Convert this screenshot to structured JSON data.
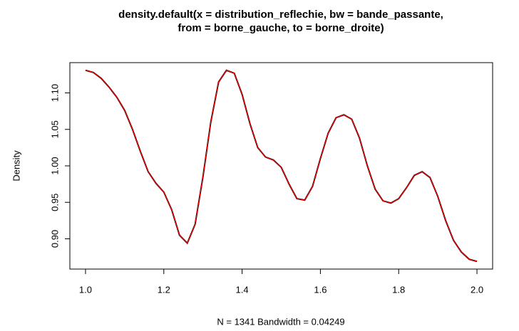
{
  "chart_data": {
    "type": "line",
    "title": "density.default(x = distribution_reflechie, bw = bande_passante,",
    "subtitle": "from = borne_gauche, to = borne_droite)",
    "xlabel": "N = 1341   Bandwidth = 0.04249",
    "ylabel": "Density",
    "x": [
      1.0,
      1.02,
      1.04,
      1.06,
      1.08,
      1.1,
      1.12,
      1.14,
      1.16,
      1.18,
      1.2,
      1.22,
      1.24,
      1.26,
      1.28,
      1.3,
      1.32,
      1.34,
      1.36,
      1.38,
      1.4,
      1.42,
      1.44,
      1.46,
      1.48,
      1.5,
      1.52,
      1.54,
      1.56,
      1.58,
      1.6,
      1.62,
      1.64,
      1.66,
      1.68,
      1.7,
      1.72,
      1.74,
      1.76,
      1.78,
      1.8,
      1.82,
      1.84,
      1.86,
      1.88,
      1.9,
      1.92,
      1.94,
      1.96,
      1.98,
      2.0
    ],
    "series": [
      {
        "color": "#000000",
        "values": [
          1.131,
          1.128,
          1.12,
          1.108,
          1.094,
          1.076,
          1.05,
          1.02,
          0.992,
          0.976,
          0.964,
          0.94,
          0.905,
          0.894,
          0.92,
          0.985,
          1.06,
          1.115,
          1.131,
          1.127,
          1.098,
          1.058,
          1.025,
          1.012,
          1.008,
          0.998,
          0.975,
          0.955,
          0.953,
          0.972,
          1.01,
          1.045,
          1.066,
          1.07,
          1.064,
          1.038,
          1.0,
          0.968,
          0.952,
          0.949,
          0.955,
          0.97,
          0.987,
          0.992,
          0.984,
          0.958,
          0.925,
          0.898,
          0.882,
          0.872,
          0.869
        ]
      },
      {
        "color": "#ff0000",
        "values": [
          1.131,
          1.128,
          1.12,
          1.108,
          1.094,
          1.076,
          1.05,
          1.02,
          0.992,
          0.976,
          0.964,
          0.94,
          0.905,
          0.894,
          0.92,
          0.985,
          1.06,
          1.115,
          1.131,
          1.127,
          1.098,
          1.058,
          1.025,
          1.012,
          1.008,
          0.998,
          0.975,
          0.955,
          0.953,
          0.972,
          1.01,
          1.045,
          1.066,
          1.07,
          1.064,
          1.038,
          1.0,
          0.968,
          0.952,
          0.949,
          0.955,
          0.97,
          0.987,
          0.992,
          0.984,
          0.958,
          0.925,
          0.898,
          0.882,
          0.872,
          0.869
        ]
      }
    ],
    "xlim": [
      0.96,
      2.04
    ],
    "xticks": [
      {
        "value": 1.0,
        "label": "1.0"
      },
      1.2,
      1.4,
      1.6,
      1.8,
      {
        "value": 2.0,
        "label": "2.0"
      }
    ],
    "ylim": [
      0.8585,
      1.1415
    ],
    "yticks": [
      {
        "value": 0.9,
        "label": "0.90"
      },
      0.95,
      {
        "value": 1.0,
        "label": "1.00"
      },
      1.05,
      {
        "value": 1.1,
        "label": "1.10"
      }
    ]
  }
}
